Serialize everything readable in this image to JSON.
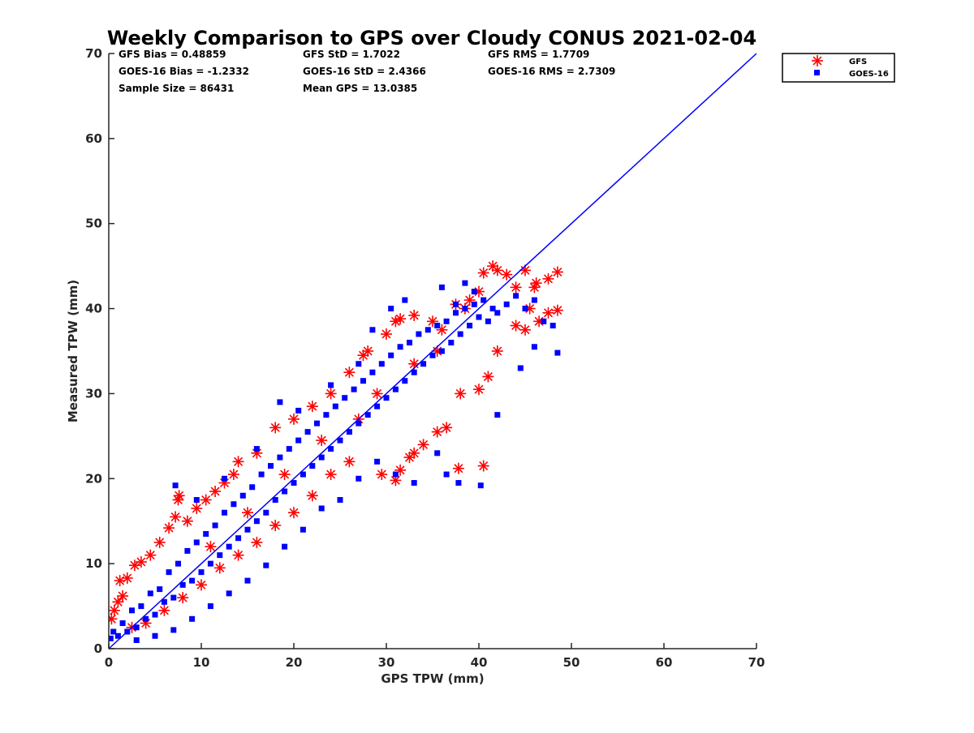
{
  "chart_data": {
    "type": "scatter",
    "title": "Weekly Comparison to GPS over Cloudy CONUS 2021-02-04",
    "xlabel": "GPS TPW (mm)",
    "ylabel": "Measured TPW (mm)",
    "xlim": [
      0,
      70
    ],
    "ylim": [
      0,
      70
    ],
    "xticks": [
      0,
      10,
      20,
      30,
      40,
      50,
      60,
      70
    ],
    "yticks": [
      0,
      10,
      20,
      30,
      40,
      50,
      60,
      70
    ],
    "grid": false,
    "legend_position": "outside-top-right",
    "stats": [
      [
        "GFS Bias = 0.48859",
        "GFS StD = 1.7022",
        "GFS RMS = 1.7709"
      ],
      [
        "GOES-16 Bias = -1.2332",
        "GOES-16 StD = 2.4366",
        "GOES-16 RMS = 2.7309"
      ],
      [
        "Sample Size = 86431",
        "Mean GPS = 13.0385",
        ""
      ]
    ],
    "reference_line": {
      "x": [
        0,
        70
      ],
      "y": [
        0,
        70
      ],
      "color": "#0000ff"
    },
    "series": [
      {
        "name": "GFS",
        "marker": "asterisk",
        "color": "#ff0000",
        "points": [
          [
            0.3,
            3.5
          ],
          [
            0.6,
            4.5
          ],
          [
            1.0,
            5.5
          ],
          [
            1.5,
            6.2
          ],
          [
            1.2,
            8.0
          ],
          [
            2.0,
            8.3
          ],
          [
            2.8,
            9.8
          ],
          [
            3.5,
            10.2
          ],
          [
            4.5,
            11.0
          ],
          [
            5.5,
            12.5
          ],
          [
            6.5,
            14.2
          ],
          [
            7.2,
            15.5
          ],
          [
            7.5,
            17.5
          ],
          [
            7.6,
            18.0
          ],
          [
            8.5,
            15.0
          ],
          [
            9.5,
            16.5
          ],
          [
            10.5,
            17.5
          ],
          [
            11.5,
            18.5
          ],
          [
            12.5,
            19.5
          ],
          [
            13.5,
            20.5
          ],
          [
            14.0,
            22.0
          ],
          [
            16.0,
            23.0
          ],
          [
            18.0,
            26.0
          ],
          [
            20.0,
            27.0
          ],
          [
            22.0,
            28.5
          ],
          [
            24.0,
            30.0
          ],
          [
            26.0,
            32.5
          ],
          [
            27.5,
            34.5
          ],
          [
            28.0,
            35.0
          ],
          [
            30.0,
            37.0
          ],
          [
            31.0,
            38.5
          ],
          [
            31.5,
            38.8
          ],
          [
            33.0,
            39.2
          ],
          [
            35.0,
            38.5
          ],
          [
            36.0,
            37.5
          ],
          [
            37.5,
            40.5
          ],
          [
            38.5,
            40.0
          ],
          [
            39.0,
            41.0
          ],
          [
            40.0,
            42.0
          ],
          [
            40.5,
            44.2
          ],
          [
            41.5,
            45.0
          ],
          [
            42.0,
            44.5
          ],
          [
            43.0,
            44.0
          ],
          [
            44.0,
            42.5
          ],
          [
            45.0,
            44.5
          ],
          [
            45.5,
            40.0
          ],
          [
            46.0,
            42.5
          ],
          [
            46.2,
            43.0
          ],
          [
            47.5,
            43.5
          ],
          [
            48.5,
            44.3
          ],
          [
            48.5,
            39.8
          ],
          [
            47.5,
            39.5
          ],
          [
            46.5,
            38.5
          ],
          [
            45.0,
            37.5
          ],
          [
            44.0,
            38.0
          ],
          [
            42.0,
            35.0
          ],
          [
            41.0,
            32.0
          ],
          [
            40.0,
            30.5
          ],
          [
            38.0,
            30.0
          ],
          [
            36.5,
            26.0
          ],
          [
            35.5,
            25.5
          ],
          [
            34.0,
            24.0
          ],
          [
            33.0,
            23.0
          ],
          [
            32.5,
            22.5
          ],
          [
            31.5,
            21.0
          ],
          [
            31.0,
            19.8
          ],
          [
            29.5,
            20.5
          ],
          [
            37.8,
            21.2
          ],
          [
            40.5,
            21.5
          ],
          [
            26.0,
            22.0
          ],
          [
            24.0,
            20.5
          ],
          [
            22.0,
            18.0
          ],
          [
            20.0,
            16.0
          ],
          [
            18.0,
            14.5
          ],
          [
            16.0,
            12.5
          ],
          [
            14.0,
            11.0
          ],
          [
            12.0,
            9.5
          ],
          [
            10.0,
            7.5
          ],
          [
            8.0,
            6.0
          ],
          [
            6.0,
            4.5
          ],
          [
            4.0,
            3.0
          ],
          [
            2.5,
            2.5
          ],
          [
            11.0,
            12.0
          ],
          [
            15.0,
            16.0
          ],
          [
            19.0,
            20.5
          ],
          [
            23.0,
            24.5
          ],
          [
            27.0,
            27.0
          ],
          [
            29.0,
            30.0
          ],
          [
            33.0,
            33.5
          ],
          [
            35.5,
            35.0
          ]
        ]
      },
      {
        "name": "GOES-16",
        "marker": "square",
        "color": "#0000ff",
        "points": [
          [
            0.2,
            1.2
          ],
          [
            0.5,
            2.0
          ],
          [
            1.0,
            1.5
          ],
          [
            1.5,
            3.0
          ],
          [
            2.0,
            2.0
          ],
          [
            2.5,
            4.5
          ],
          [
            3.0,
            2.5
          ],
          [
            3.5,
            5.0
          ],
          [
            4.0,
            3.5
          ],
          [
            4.5,
            6.5
          ],
          [
            5.0,
            4.0
          ],
          [
            5.5,
            7.0
          ],
          [
            6.0,
            5.5
          ],
          [
            6.5,
            9.0
          ],
          [
            7.0,
            6.0
          ],
          [
            7.5,
            10.0
          ],
          [
            8.0,
            7.5
          ],
          [
            8.5,
            11.5
          ],
          [
            9.0,
            8.0
          ],
          [
            9.5,
            12.5
          ],
          [
            10.0,
            9.0
          ],
          [
            10.5,
            13.5
          ],
          [
            11.0,
            10.0
          ],
          [
            11.5,
            14.5
          ],
          [
            12.0,
            11.0
          ],
          [
            12.5,
            16.0
          ],
          [
            13.0,
            12.0
          ],
          [
            13.5,
            17.0
          ],
          [
            14.0,
            13.0
          ],
          [
            14.5,
            18.0
          ],
          [
            15.0,
            14.0
          ],
          [
            15.5,
            19.0
          ],
          [
            16.0,
            15.0
          ],
          [
            16.5,
            20.5
          ],
          [
            17.0,
            16.0
          ],
          [
            17.5,
            21.5
          ],
          [
            18.0,
            17.5
          ],
          [
            18.5,
            22.5
          ],
          [
            19.0,
            18.5
          ],
          [
            19.5,
            23.5
          ],
          [
            20.0,
            19.5
          ],
          [
            20.5,
            24.5
          ],
          [
            21.0,
            20.5
          ],
          [
            21.5,
            25.5
          ],
          [
            22.0,
            21.5
          ],
          [
            22.5,
            26.5
          ],
          [
            23.0,
            22.5
          ],
          [
            23.5,
            27.5
          ],
          [
            24.0,
            23.5
          ],
          [
            24.5,
            28.5
          ],
          [
            25.0,
            24.5
          ],
          [
            25.5,
            29.5
          ],
          [
            26.0,
            25.5
          ],
          [
            26.5,
            30.5
          ],
          [
            27.0,
            26.5
          ],
          [
            27.5,
            31.5
          ],
          [
            28.0,
            27.5
          ],
          [
            28.5,
            32.5
          ],
          [
            29.0,
            28.5
          ],
          [
            29.5,
            33.5
          ],
          [
            30.0,
            29.5
          ],
          [
            30.5,
            34.5
          ],
          [
            31.0,
            30.5
          ],
          [
            31.5,
            35.5
          ],
          [
            32.0,
            31.5
          ],
          [
            32.5,
            36.0
          ],
          [
            33.0,
            32.5
          ],
          [
            33.5,
            37.0
          ],
          [
            34.0,
            33.5
          ],
          [
            34.5,
            37.5
          ],
          [
            35.0,
            34.5
          ],
          [
            35.5,
            38.0
          ],
          [
            36.0,
            35.0
          ],
          [
            36.5,
            38.5
          ],
          [
            37.0,
            36.0
          ],
          [
            37.5,
            39.5
          ],
          [
            38.0,
            37.0
          ],
          [
            38.5,
            40.0
          ],
          [
            39.0,
            38.0
          ],
          [
            39.5,
            40.5
          ],
          [
            40.0,
            39.0
          ],
          [
            40.5,
            41.0
          ],
          [
            41.0,
            38.5
          ],
          [
            41.5,
            40.0
          ],
          [
            42.0,
            39.5
          ],
          [
            43.0,
            40.5
          ],
          [
            44.0,
            41.5
          ],
          [
            45.0,
            40.0
          ],
          [
            46.0,
            41.0
          ],
          [
            47.0,
            38.5
          ],
          [
            48.0,
            38.0
          ],
          [
            48.5,
            34.8
          ],
          [
            46.0,
            35.5
          ],
          [
            44.5,
            33.0
          ],
          [
            42.0,
            27.5
          ],
          [
            40.2,
            19.2
          ],
          [
            37.8,
            19.5
          ],
          [
            36.5,
            20.5
          ],
          [
            35.5,
            23.0
          ],
          [
            33.0,
            19.5
          ],
          [
            31.0,
            20.5
          ],
          [
            29.0,
            22.0
          ],
          [
            27.0,
            20.0
          ],
          [
            25.0,
            17.5
          ],
          [
            23.0,
            16.5
          ],
          [
            21.0,
            14.0
          ],
          [
            19.0,
            12.0
          ],
          [
            17.0,
            9.8
          ],
          [
            15.0,
            8.0
          ],
          [
            13.0,
            6.5
          ],
          [
            11.0,
            5.0
          ],
          [
            9.0,
            3.5
          ],
          [
            7.0,
            2.2
          ],
          [
            5.0,
            1.5
          ],
          [
            3.0,
            1.0
          ],
          [
            7.2,
            19.2
          ],
          [
            9.5,
            17.5
          ],
          [
            12.5,
            20.0
          ],
          [
            16.0,
            23.5
          ],
          [
            18.5,
            29.0
          ],
          [
            20.5,
            28.0
          ],
          [
            24.0,
            31.0
          ],
          [
            27.0,
            33.5
          ],
          [
            28.5,
            37.5
          ],
          [
            30.5,
            40.0
          ],
          [
            32.0,
            41.0
          ],
          [
            36.0,
            42.5
          ],
          [
            37.5,
            40.5
          ],
          [
            38.5,
            43.0
          ],
          [
            39.5,
            42.0
          ]
        ]
      }
    ]
  }
}
